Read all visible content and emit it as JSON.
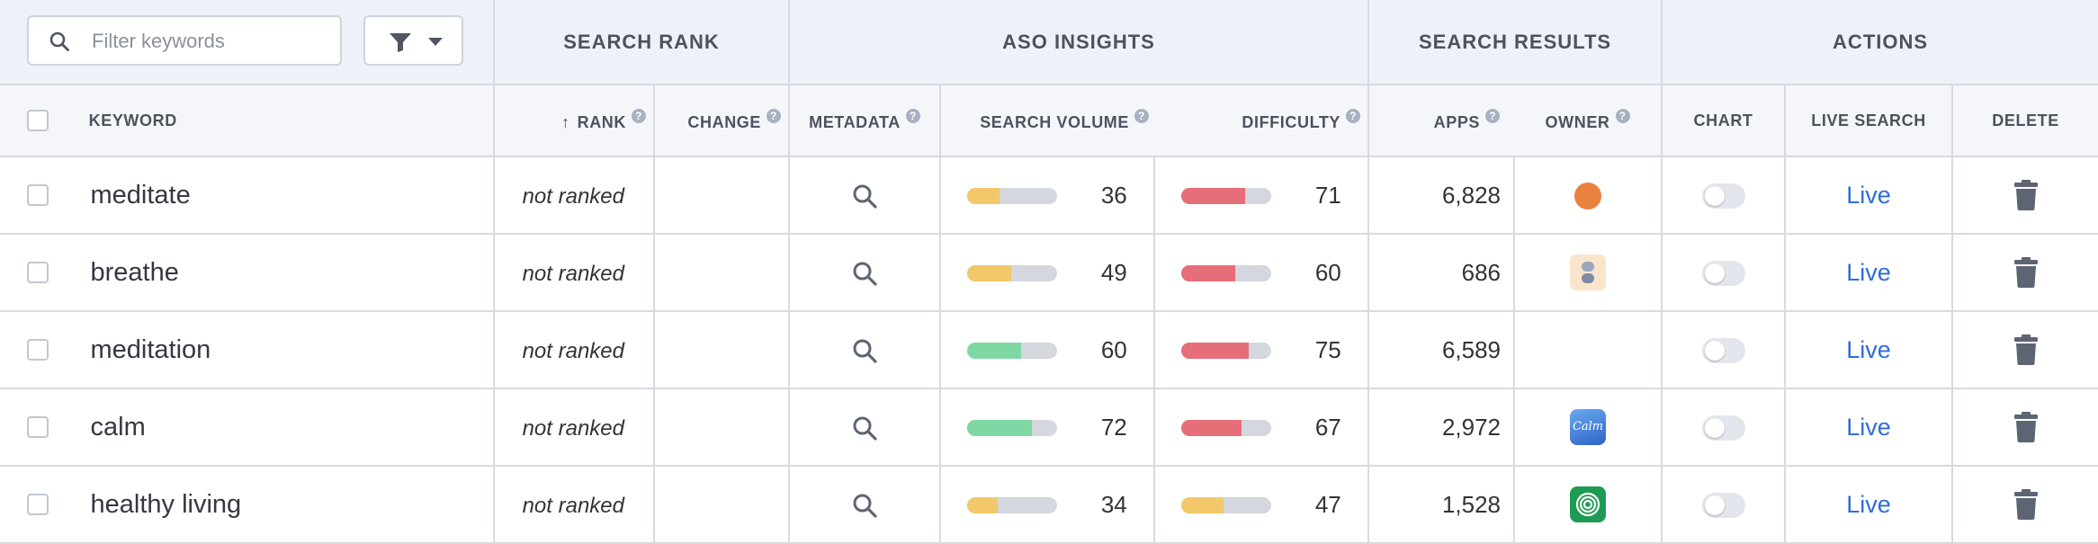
{
  "filter": {
    "placeholder": "Filter keywords",
    "search_icon": "search-icon",
    "filter_icon": "funnel-icon",
    "dropdown_icon": "caret-down-icon"
  },
  "groups": {
    "search_rank": "SEARCH RANK",
    "aso_insights": "ASO INSIGHTS",
    "search_results": "SEARCH RESULTS",
    "actions": "ACTIONS"
  },
  "columns": {
    "keyword": "KEYWORD",
    "rank_arrow": "↑",
    "rank": "RANK",
    "change": "CHANGE",
    "metadata": "METADATA",
    "search_volume": "SEARCH VOLUME",
    "difficulty": "DIFFICULTY",
    "apps": "APPS",
    "owner": "OWNER",
    "chart": "CHART",
    "live_search": "LIVE SEARCH",
    "delete": "DELETE",
    "help_glyph": "?"
  },
  "colors": {
    "volume_low": "#f3c86a",
    "volume_high": "#7fd8a3",
    "difficulty_high": "#e66e79",
    "difficulty_mid": "#f3c86a",
    "link": "#2f6ddb",
    "icon": "#5d6473"
  },
  "rows": [
    {
      "keyword": "meditate",
      "rank": "not ranked",
      "change": "",
      "search_volume": 36,
      "volume_color": "#f3c86a",
      "difficulty": 71,
      "difficulty_color": "#e66e79",
      "apps": "6,828",
      "owner_icon": "orange-dot-icon",
      "live": "Live"
    },
    {
      "keyword": "breathe",
      "rank": "not ranked",
      "change": "",
      "search_volume": 49,
      "volume_color": "#f3c86a",
      "difficulty": 60,
      "difficulty_color": "#e66e79",
      "apps": "686",
      "owner_icon": "breathe-app-icon",
      "live": "Live"
    },
    {
      "keyword": "meditation",
      "rank": "not ranked",
      "change": "",
      "search_volume": 60,
      "volume_color": "#7fd8a3",
      "difficulty": 75,
      "difficulty_color": "#e66e79",
      "apps": "6,589",
      "owner_icon": "",
      "live": "Live"
    },
    {
      "keyword": "calm",
      "rank": "not ranked",
      "change": "",
      "search_volume": 72,
      "volume_color": "#7fd8a3",
      "difficulty": 67,
      "difficulty_color": "#e66e79",
      "apps": "2,972",
      "owner_icon": "calm-app-icon",
      "owner_label": "Calm",
      "live": "Live"
    },
    {
      "keyword": "healthy living",
      "rank": "not ranked",
      "change": "",
      "search_volume": 34,
      "volume_color": "#f3c86a",
      "difficulty": 47,
      "difficulty_color": "#f3c86a",
      "apps": "1,528",
      "owner_icon": "green-app-icon",
      "live": "Live"
    }
  ]
}
